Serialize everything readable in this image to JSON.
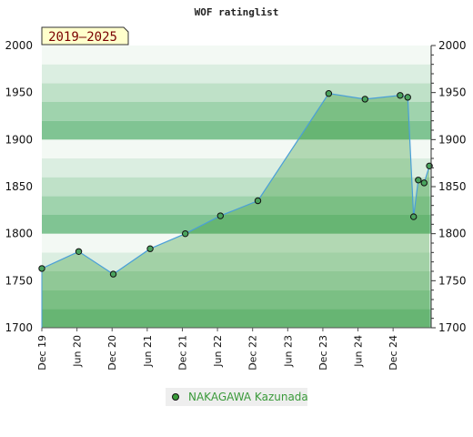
{
  "chart_data": {
    "type": "area",
    "title": "WOF ratinglist",
    "period_label": "2019–2025",
    "ylim": [
      1700,
      2000
    ],
    "yticks": [
      1700,
      1750,
      1800,
      1850,
      1900,
      1950,
      2000
    ],
    "xticks": [
      {
        "label": "Dec 19",
        "x": 0
      },
      {
        "label": "Jun 20",
        "x": 6
      },
      {
        "label": "Dec 20",
        "x": 12
      },
      {
        "label": "Jun 21",
        "x": 18
      },
      {
        "label": "Dec 21",
        "x": 24
      },
      {
        "label": "Jun 22",
        "x": 30
      },
      {
        "label": "Dec 22",
        "x": 36
      },
      {
        "label": "Jun 23",
        "x": 42
      },
      {
        "label": "Dec 23",
        "x": 48
      },
      {
        "label": "Jun 24",
        "x": 54
      },
      {
        "label": "Dec 24",
        "x": 60
      }
    ],
    "xlim": [
      0,
      66.5
    ],
    "series": [
      {
        "name": "NAKAGAWA Kazunada",
        "color": "#3a9a3a",
        "points": [
          {
            "x": 0,
            "y": 1763
          },
          {
            "x": 6.3,
            "y": 1781
          },
          {
            "x": 12.2,
            "y": 1757
          },
          {
            "x": 18.5,
            "y": 1784
          },
          {
            "x": 24.5,
            "y": 1800
          },
          {
            "x": 30.5,
            "y": 1819
          },
          {
            "x": 36.9,
            "y": 1835
          },
          {
            "x": 49.0,
            "y": 1949
          },
          {
            "x": 55.2,
            "y": 1943
          },
          {
            "x": 61.2,
            "y": 1947
          },
          {
            "x": 62.5,
            "y": 1945
          },
          {
            "x": 63.5,
            "y": 1818
          },
          {
            "x": 64.3,
            "y": 1857
          },
          {
            "x": 65.3,
            "y": 1854
          },
          {
            "x": 66.2,
            "y": 1872
          }
        ]
      }
    ],
    "grid": true,
    "legend": "bottom-center"
  }
}
